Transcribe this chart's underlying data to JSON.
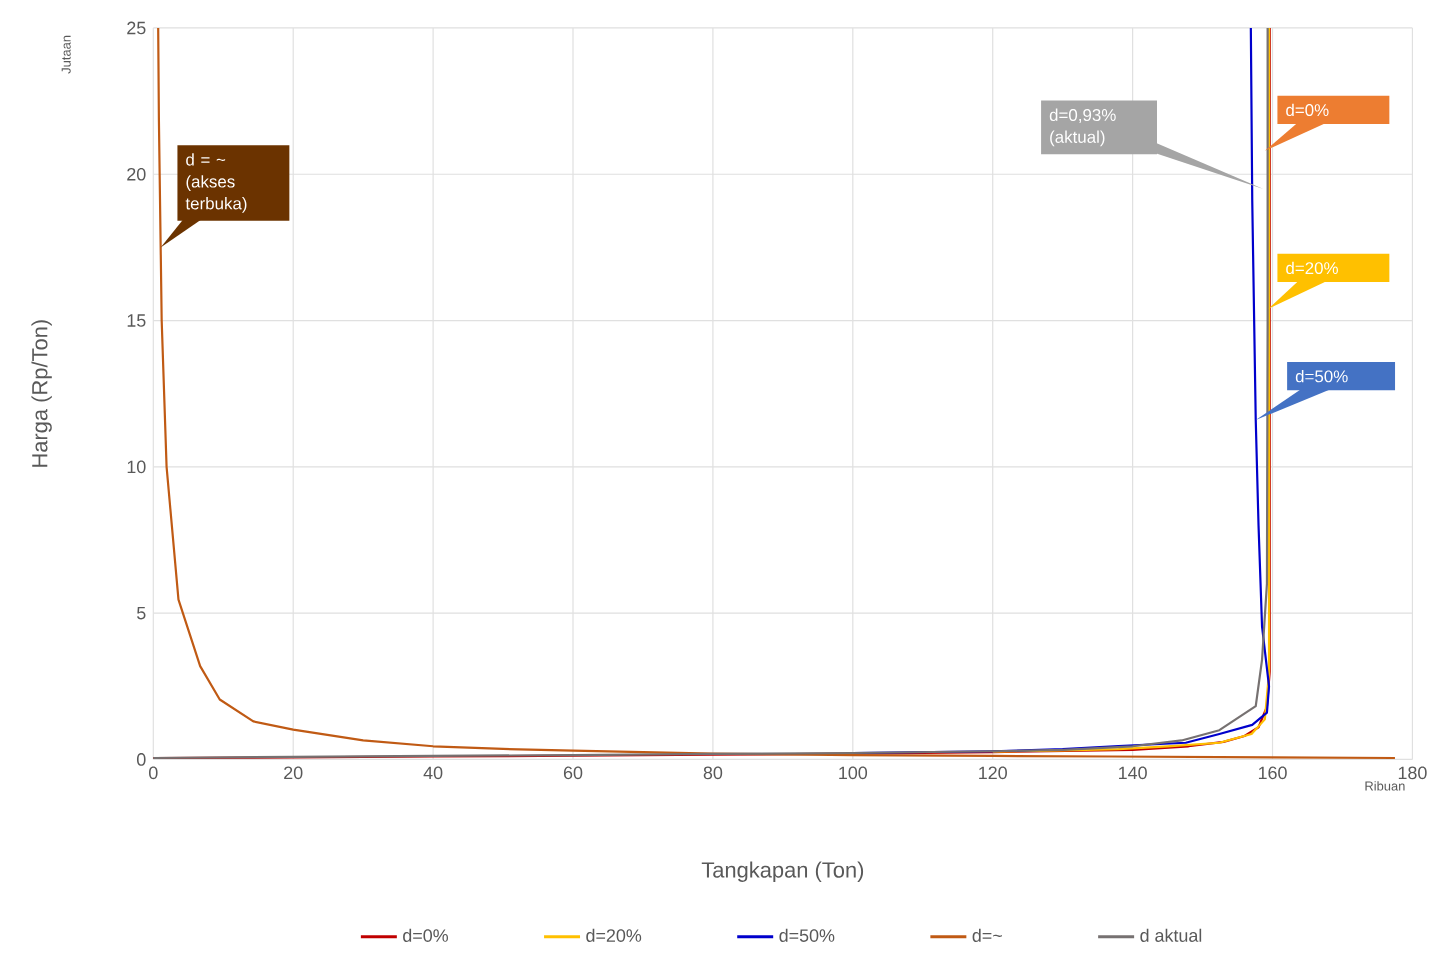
{
  "chart_data": {
    "type": "line",
    "xlabel": "Tangkapan (Ton)",
    "ylabel": "Harga (Rp/Ton)",
    "xlim": [
      0,
      180
    ],
    "xticks": [
      0,
      20,
      40,
      60,
      80,
      100,
      120,
      140,
      160,
      180
    ],
    "ylim": [
      0,
      25
    ],
    "yticks": [
      0,
      5,
      10,
      15,
      20,
      25
    ],
    "grid": true,
    "legend": "bottom",
    "series": [
      {
        "name": "d=0%",
        "color": "#c00000",
        "x": [
          0,
          20,
          40,
          60,
          80,
          100,
          120,
          130,
          140,
          148,
          153,
          156,
          158,
          159.2,
          159.6,
          159.6
        ],
        "values": [
          0.05,
          0.07,
          0.1,
          0.13,
          0.16,
          0.2,
          0.25,
          0.29,
          0.33,
          0.45,
          0.6,
          0.8,
          1.1,
          1.8,
          3,
          25
        ]
      },
      {
        "name": "d=20%",
        "color": "#ffc000",
        "x": [
          120,
          130,
          138,
          145,
          152.4,
          157,
          158.9,
          159.5,
          159.5
        ],
        "values": [
          0.27,
          0.31,
          0.35,
          0.45,
          0.57,
          0.87,
          1.37,
          2.96,
          25
        ]
      },
      {
        "name": "d=50%",
        "color": "#0000cc",
        "x": [
          100,
          120,
          130,
          138,
          147.6,
          152.4,
          157.1,
          159.2,
          159.5,
          158.5,
          158,
          157.6,
          157.1,
          156.9
        ],
        "values": [
          0.22,
          0.28,
          0.35,
          0.46,
          0.57,
          0.87,
          1.18,
          1.6,
          2.5,
          4.55,
          8,
          11.6,
          19.1,
          25
        ]
      },
      {
        "name": "d=~",
        "color": "#c05a14",
        "x": [
          0.7,
          0.8,
          1.2,
          1.9,
          3.6,
          6.7,
          9.5,
          14.3,
          20,
          30,
          40,
          50,
          60,
          80,
          100,
          120,
          137,
          160,
          177.5
        ],
        "values": [
          25,
          21.9,
          15,
          10,
          5.46,
          3.19,
          2.05,
          1.3,
          1.02,
          0.65,
          0.45,
          0.36,
          0.3,
          0.2,
          0.15,
          0.12,
          0.1,
          0.07,
          0.05
        ]
      },
      {
        "name": "d aktual",
        "color": "#767171",
        "x": [
          0,
          20,
          40,
          60,
          80,
          100,
          120,
          130,
          140,
          147,
          152.4,
          157.6,
          158.5,
          159.2,
          159.3,
          159.3
        ],
        "values": [
          0.05,
          0.09,
          0.12,
          0.15,
          0.19,
          0.22,
          0.28,
          0.33,
          0.45,
          0.65,
          1.0,
          1.82,
          3.4,
          6,
          15,
          25
        ]
      }
    ],
    "annotations": [
      {
        "text": "d = ~ (akses terbuka)",
        "x": 1.05,
        "y": 17.5
      },
      {
        "text": "d=0,93% (aktual)",
        "x": 158.7,
        "y": 19.5
      },
      {
        "text": "d=0%",
        "x": 158.9,
        "y": 20.8
      },
      {
        "text": "d=20%",
        "x": 159.4,
        "y": 15.4
      },
      {
        "text": "d=50%",
        "x": 157.6,
        "y": 11.6
      },
      "Jutaan",
      "Ribuan"
    ]
  }
}
